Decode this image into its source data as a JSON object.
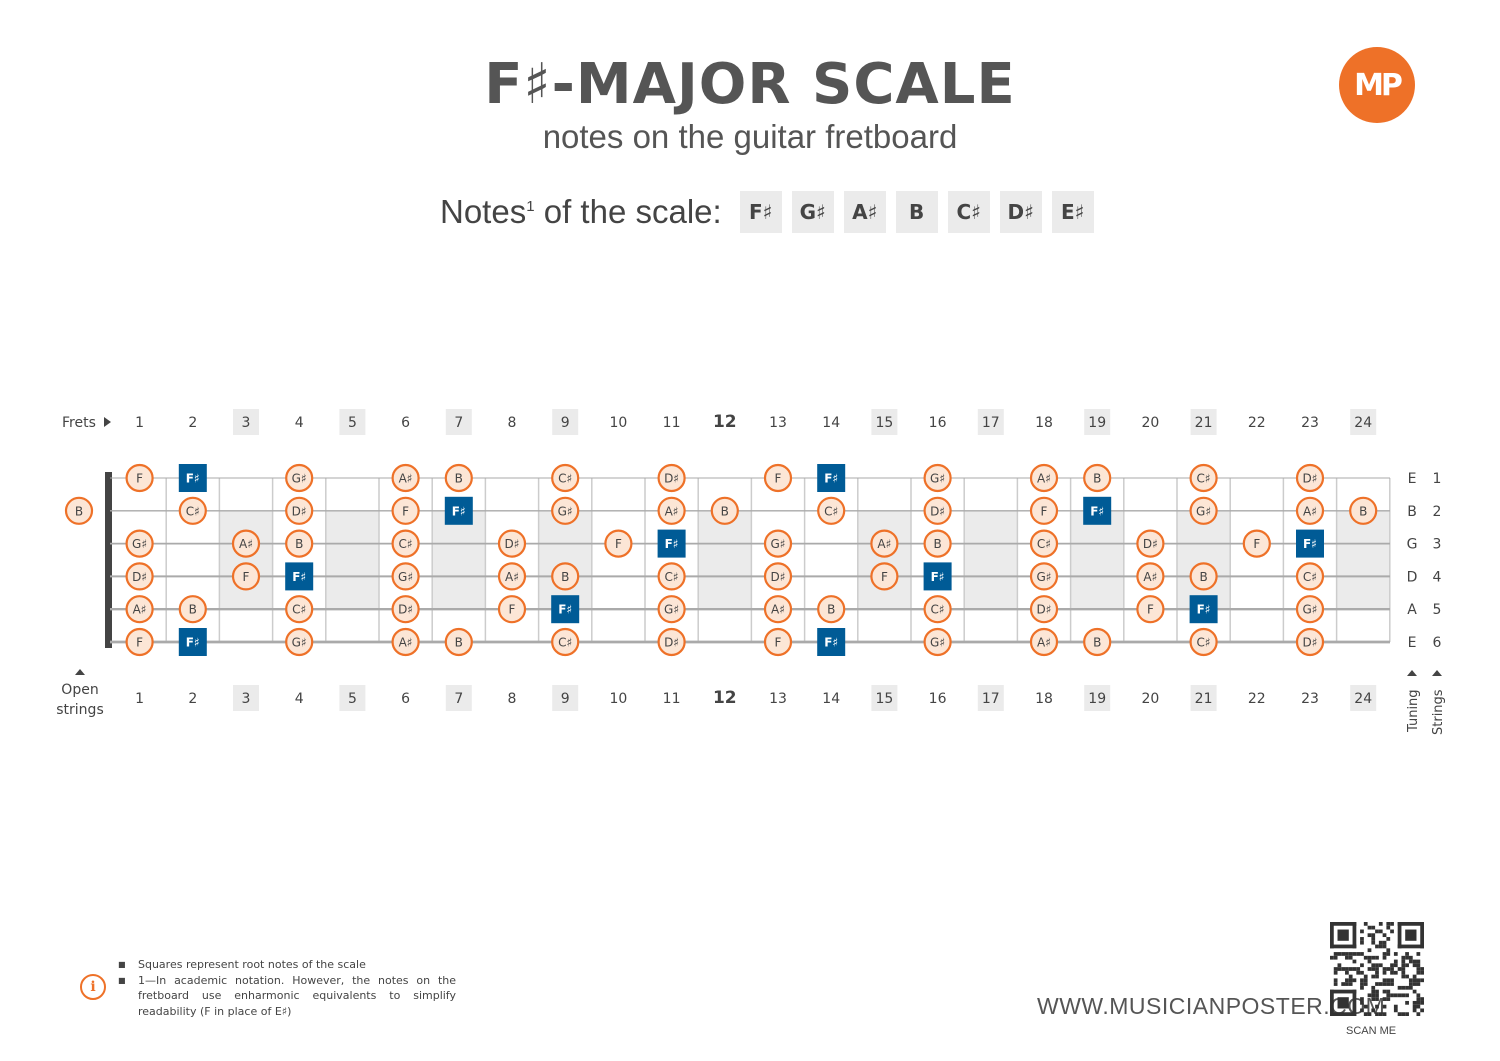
{
  "title": "F♯-MAJOR SCALE",
  "subtitle": "notes on the guitar fretboard",
  "logo_text": "MP",
  "notes_label": "Notes",
  "notes_label_sup": "1",
  "notes_label_rest": " of the scale:",
  "scale_notes": [
    "F♯",
    "G♯",
    "A♯",
    "B",
    "C♯",
    "D♯",
    "E♯"
  ],
  "colors": {
    "accent": "#ee7128",
    "root": "#005b96",
    "note_fill": "#fce6d6",
    "marker_fill": "#ebebeb",
    "string": "#aaaaaa"
  },
  "fretboard": {
    "frets_label": "Frets",
    "open_strings_label_1": "Open",
    "open_strings_label_2": "strings",
    "tuning_label": "Tuning",
    "strings_label": "Strings",
    "fret_numbers": [
      "1",
      "2",
      "3",
      "4",
      "5",
      "6",
      "7",
      "8",
      "9",
      "10",
      "11",
      "12",
      "13",
      "14",
      "15",
      "16",
      "17",
      "18",
      "19",
      "20",
      "21",
      "22",
      "23",
      "24"
    ],
    "marker_frets": [
      3,
      5,
      7,
      9,
      12,
      15,
      17,
      19,
      21,
      24
    ],
    "strings": [
      {
        "tuning": "E",
        "number": "1",
        "open": "",
        "notes": [
          [
            "F",
            1,
            false
          ],
          [
            "F♯",
            2,
            true
          ],
          [
            "G♯",
            4,
            false
          ],
          [
            "A♯",
            6,
            false
          ],
          [
            "B",
            7,
            false
          ],
          [
            "C♯",
            9,
            false
          ],
          [
            "D♯",
            11,
            false
          ],
          [
            "F",
            13,
            false
          ],
          [
            "F♯",
            14,
            true
          ],
          [
            "G♯",
            16,
            false
          ],
          [
            "A♯",
            18,
            false
          ],
          [
            "B",
            19,
            false
          ],
          [
            "C♯",
            21,
            false
          ],
          [
            "D♯",
            23,
            false
          ]
        ]
      },
      {
        "tuning": "B",
        "number": "2",
        "open": "B",
        "notes": [
          [
            "C♯",
            2,
            false
          ],
          [
            "D♯",
            4,
            false
          ],
          [
            "F",
            6,
            false
          ],
          [
            "F♯",
            7,
            true
          ],
          [
            "G♯",
            9,
            false
          ],
          [
            "A♯",
            11,
            false
          ],
          [
            "B",
            12,
            false
          ],
          [
            "C♯",
            14,
            false
          ],
          [
            "D♯",
            16,
            false
          ],
          [
            "F",
            18,
            false
          ],
          [
            "F♯",
            19,
            true
          ],
          [
            "G♯",
            21,
            false
          ],
          [
            "A♯",
            23,
            false
          ],
          [
            "B",
            24,
            false
          ]
        ]
      },
      {
        "tuning": "G",
        "number": "3",
        "open": "",
        "notes": [
          [
            "G♯",
            1,
            false
          ],
          [
            "A♯",
            3,
            false
          ],
          [
            "B",
            4,
            false
          ],
          [
            "C♯",
            6,
            false
          ],
          [
            "D♯",
            8,
            false
          ],
          [
            "F",
            10,
            false
          ],
          [
            "F♯",
            11,
            true
          ],
          [
            "G♯",
            13,
            false
          ],
          [
            "A♯",
            15,
            false
          ],
          [
            "B",
            16,
            false
          ],
          [
            "C♯",
            18,
            false
          ],
          [
            "D♯",
            20,
            false
          ],
          [
            "F",
            22,
            false
          ],
          [
            "F♯",
            23,
            true
          ]
        ]
      },
      {
        "tuning": "D",
        "number": "4",
        "open": "",
        "notes": [
          [
            "D♯",
            1,
            false
          ],
          [
            "F",
            3,
            false
          ],
          [
            "F♯",
            4,
            true
          ],
          [
            "G♯",
            6,
            false
          ],
          [
            "A♯",
            8,
            false
          ],
          [
            "B",
            9,
            false
          ],
          [
            "C♯",
            11,
            false
          ],
          [
            "D♯",
            13,
            false
          ],
          [
            "F",
            15,
            false
          ],
          [
            "F♯",
            16,
            true
          ],
          [
            "G♯",
            18,
            false
          ],
          [
            "A♯",
            20,
            false
          ],
          [
            "B",
            21,
            false
          ],
          [
            "C♯",
            23,
            false
          ]
        ]
      },
      {
        "tuning": "A",
        "number": "5",
        "open": "",
        "notes": [
          [
            "A♯",
            1,
            false
          ],
          [
            "B",
            2,
            false
          ],
          [
            "C♯",
            4,
            false
          ],
          [
            "D♯",
            6,
            false
          ],
          [
            "F",
            8,
            false
          ],
          [
            "F♯",
            9,
            true
          ],
          [
            "G♯",
            11,
            false
          ],
          [
            "A♯",
            13,
            false
          ],
          [
            "B",
            14,
            false
          ],
          [
            "C♯",
            16,
            false
          ],
          [
            "D♯",
            18,
            false
          ],
          [
            "F",
            20,
            false
          ],
          [
            "F♯",
            21,
            true
          ],
          [
            "G♯",
            23,
            false
          ]
        ]
      },
      {
        "tuning": "E",
        "number": "6",
        "open": "",
        "notes": [
          [
            "F",
            1,
            false
          ],
          [
            "F♯",
            2,
            true
          ],
          [
            "G♯",
            4,
            false
          ],
          [
            "A♯",
            6,
            false
          ],
          [
            "B",
            7,
            false
          ],
          [
            "C♯",
            9,
            false
          ],
          [
            "D♯",
            11,
            false
          ],
          [
            "F",
            13,
            false
          ],
          [
            "F♯",
            14,
            true
          ],
          [
            "G♯",
            16,
            false
          ],
          [
            "A♯",
            18,
            false
          ],
          [
            "B",
            19,
            false
          ],
          [
            "C♯",
            21,
            false
          ],
          [
            "D♯",
            23,
            false
          ]
        ]
      }
    ]
  },
  "footnotes": [
    "Squares represent root notes of the scale",
    "1—In academic notation. However, the notes on the fretboard use enharmonic equivalents to simplify readability (F in place of E♯)"
  ],
  "info_icon": "i",
  "website": "WWW.MUSICIANPOSTER.COM",
  "scan_label": "SCAN ME"
}
